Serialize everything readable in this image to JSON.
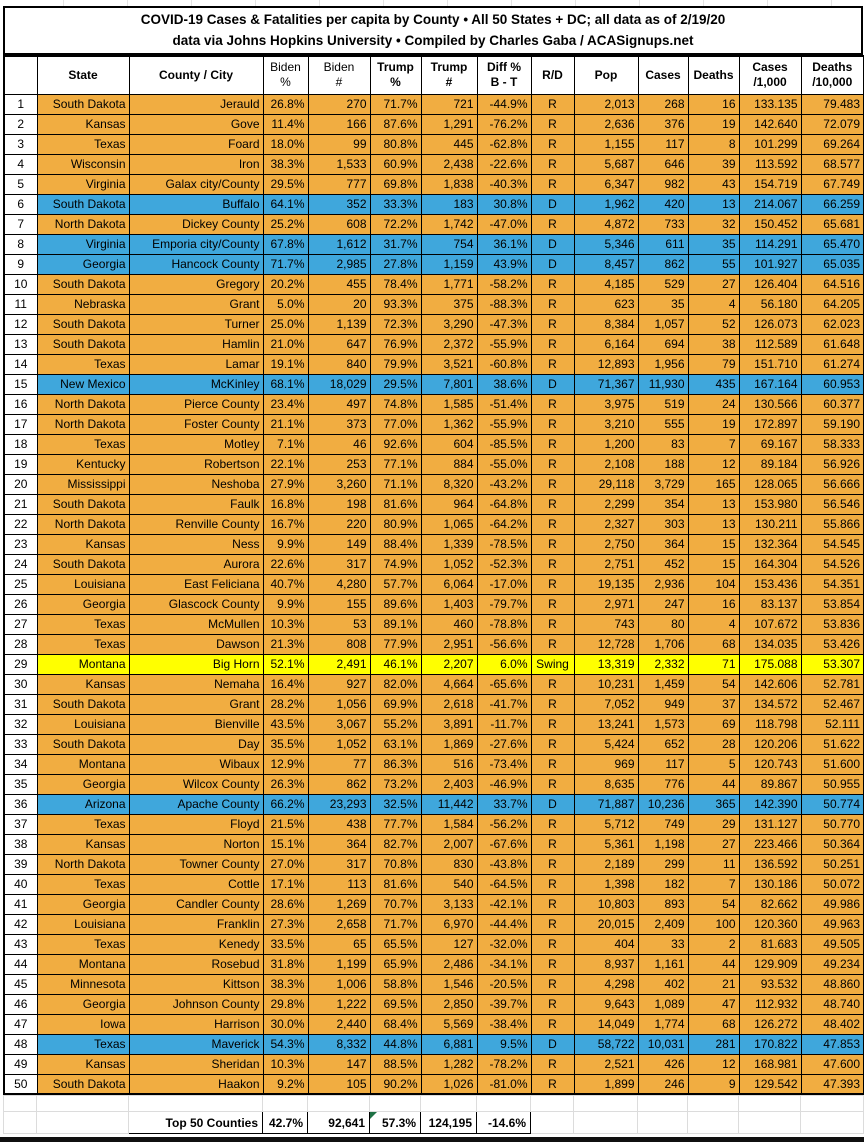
{
  "title": {
    "line1": "COVID-19 Cases & Fatalities per capita by County • All 50 States + DC; all data as of 2/19/20",
    "line2": "data via Johns Hopkins University • Compiled by Charles Gaba / ACASignups.net"
  },
  "columns": [
    "",
    "State",
    "County / City",
    "Biden\n%",
    "Biden\n#",
    "Trump\n%",
    "Trump\n#",
    "Diff %\nB - T",
    "R/D",
    "Pop",
    "Cases",
    "Deaths",
    "Cases\n/1,000",
    "Deaths\n/10,000"
  ],
  "rows": [
    [
      "1",
      "South Dakota",
      "Jerauld",
      "26.8%",
      "270",
      "71.7%",
      "721",
      "-44.9%",
      "R",
      "2,013",
      "268",
      "16",
      "133.135",
      "79.483"
    ],
    [
      "2",
      "Kansas",
      "Gove",
      "11.4%",
      "166",
      "87.6%",
      "1,291",
      "-76.2%",
      "R",
      "2,636",
      "376",
      "19",
      "142.640",
      "72.079"
    ],
    [
      "3",
      "Texas",
      "Foard",
      "18.0%",
      "99",
      "80.8%",
      "445",
      "-62.8%",
      "R",
      "1,155",
      "117",
      "8",
      "101.299",
      "69.264"
    ],
    [
      "4",
      "Wisconsin",
      "Iron",
      "38.3%",
      "1,533",
      "60.9%",
      "2,438",
      "-22.6%",
      "R",
      "5,687",
      "646",
      "39",
      "113.592",
      "68.577"
    ],
    [
      "5",
      "Virginia",
      "Galax city/County",
      "29.5%",
      "777",
      "69.8%",
      "1,838",
      "-40.3%",
      "R",
      "6,347",
      "982",
      "43",
      "154.719",
      "67.749"
    ],
    [
      "6",
      "South Dakota",
      "Buffalo",
      "64.1%",
      "352",
      "33.3%",
      "183",
      "30.8%",
      "D",
      "1,962",
      "420",
      "13",
      "214.067",
      "66.259"
    ],
    [
      "7",
      "North Dakota",
      "Dickey County",
      "25.2%",
      "608",
      "72.2%",
      "1,742",
      "-47.0%",
      "R",
      "4,872",
      "733",
      "32",
      "150.452",
      "65.681"
    ],
    [
      "8",
      "Virginia",
      "Emporia city/County",
      "67.8%",
      "1,612",
      "31.7%",
      "754",
      "36.1%",
      "D",
      "5,346",
      "611",
      "35",
      "114.291",
      "65.470"
    ],
    [
      "9",
      "Georgia",
      "Hancock County",
      "71.7%",
      "2,985",
      "27.8%",
      "1,159",
      "43.9%",
      "D",
      "8,457",
      "862",
      "55",
      "101.927",
      "65.035"
    ],
    [
      "10",
      "South Dakota",
      "Gregory",
      "20.2%",
      "455",
      "78.4%",
      "1,771",
      "-58.2%",
      "R",
      "4,185",
      "529",
      "27",
      "126.404",
      "64.516"
    ],
    [
      "11",
      "Nebraska",
      "Grant",
      "5.0%",
      "20",
      "93.3%",
      "375",
      "-88.3%",
      "R",
      "623",
      "35",
      "4",
      "56.180",
      "64.205"
    ],
    [
      "12",
      "South Dakota",
      "Turner",
      "25.0%",
      "1,139",
      "72.3%",
      "3,290",
      "-47.3%",
      "R",
      "8,384",
      "1,057",
      "52",
      "126.073",
      "62.023"
    ],
    [
      "13",
      "South Dakota",
      "Hamlin",
      "21.0%",
      "647",
      "76.9%",
      "2,372",
      "-55.9%",
      "R",
      "6,164",
      "694",
      "38",
      "112.589",
      "61.648"
    ],
    [
      "14",
      "Texas",
      "Lamar",
      "19.1%",
      "840",
      "79.9%",
      "3,521",
      "-60.8%",
      "R",
      "12,893",
      "1,956",
      "79",
      "151.710",
      "61.274"
    ],
    [
      "15",
      "New Mexico",
      "McKinley",
      "68.1%",
      "18,029",
      "29.5%",
      "7,801",
      "38.6%",
      "D",
      "71,367",
      "11,930",
      "435",
      "167.164",
      "60.953"
    ],
    [
      "16",
      "North Dakota",
      "Pierce County",
      "23.4%",
      "497",
      "74.8%",
      "1,585",
      "-51.4%",
      "R",
      "3,975",
      "519",
      "24",
      "130.566",
      "60.377"
    ],
    [
      "17",
      "North Dakota",
      "Foster County",
      "21.1%",
      "373",
      "77.0%",
      "1,362",
      "-55.9%",
      "R",
      "3,210",
      "555",
      "19",
      "172.897",
      "59.190"
    ],
    [
      "18",
      "Texas",
      "Motley",
      "7.1%",
      "46",
      "92.6%",
      "604",
      "-85.5%",
      "R",
      "1,200",
      "83",
      "7",
      "69.167",
      "58.333"
    ],
    [
      "19",
      "Kentucky",
      "Robertson",
      "22.1%",
      "253",
      "77.1%",
      "884",
      "-55.0%",
      "R",
      "2,108",
      "188",
      "12",
      "89.184",
      "56.926"
    ],
    [
      "20",
      "Mississippi",
      "Neshoba",
      "27.9%",
      "3,260",
      "71.1%",
      "8,320",
      "-43.2%",
      "R",
      "29,118",
      "3,729",
      "165",
      "128.065",
      "56.666"
    ],
    [
      "21",
      "South Dakota",
      "Faulk",
      "16.8%",
      "198",
      "81.6%",
      "964",
      "-64.8%",
      "R",
      "2,299",
      "354",
      "13",
      "153.980",
      "56.546"
    ],
    [
      "22",
      "North Dakota",
      "Renville County",
      "16.7%",
      "220",
      "80.9%",
      "1,065",
      "-64.2%",
      "R",
      "2,327",
      "303",
      "13",
      "130.211",
      "55.866"
    ],
    [
      "23",
      "Kansas",
      "Ness",
      "9.9%",
      "149",
      "88.4%",
      "1,339",
      "-78.5%",
      "R",
      "2,750",
      "364",
      "15",
      "132.364",
      "54.545"
    ],
    [
      "24",
      "South Dakota",
      "Aurora",
      "22.6%",
      "317",
      "74.9%",
      "1,052",
      "-52.3%",
      "R",
      "2,751",
      "452",
      "15",
      "164.304",
      "54.526"
    ],
    [
      "25",
      "Louisiana",
      "East Feliciana",
      "40.7%",
      "4,280",
      "57.7%",
      "6,064",
      "-17.0%",
      "R",
      "19,135",
      "2,936",
      "104",
      "153.436",
      "54.351"
    ],
    [
      "26",
      "Georgia",
      "Glascock County",
      "9.9%",
      "155",
      "89.6%",
      "1,403",
      "-79.7%",
      "R",
      "2,971",
      "247",
      "16",
      "83.137",
      "53.854"
    ],
    [
      "27",
      "Texas",
      "McMullen",
      "10.3%",
      "53",
      "89.1%",
      "460",
      "-78.8%",
      "R",
      "743",
      "80",
      "4",
      "107.672",
      "53.836"
    ],
    [
      "28",
      "Texas",
      "Dawson",
      "21.3%",
      "808",
      "77.9%",
      "2,951",
      "-56.6%",
      "R",
      "12,728",
      "1,706",
      "68",
      "134.035",
      "53.426"
    ],
    [
      "29",
      "Montana",
      "Big Horn",
      "52.1%",
      "2,491",
      "46.1%",
      "2,207",
      "6.0%",
      "Swing",
      "13,319",
      "2,332",
      "71",
      "175.088",
      "53.307"
    ],
    [
      "30",
      "Kansas",
      "Nemaha",
      "16.4%",
      "927",
      "82.0%",
      "4,664",
      "-65.6%",
      "R",
      "10,231",
      "1,459",
      "54",
      "142.606",
      "52.781"
    ],
    [
      "31",
      "South Dakota",
      "Grant",
      "28.2%",
      "1,056",
      "69.9%",
      "2,618",
      "-41.7%",
      "R",
      "7,052",
      "949",
      "37",
      "134.572",
      "52.467"
    ],
    [
      "32",
      "Louisiana",
      "Bienville",
      "43.5%",
      "3,067",
      "55.2%",
      "3,891",
      "-11.7%",
      "R",
      "13,241",
      "1,573",
      "69",
      "118.798",
      "52.111"
    ],
    [
      "33",
      "South Dakota",
      "Day",
      "35.5%",
      "1,052",
      "63.1%",
      "1,869",
      "-27.6%",
      "R",
      "5,424",
      "652",
      "28",
      "120.206",
      "51.622"
    ],
    [
      "34",
      "Montana",
      "Wibaux",
      "12.9%",
      "77",
      "86.3%",
      "516",
      "-73.4%",
      "R",
      "969",
      "117",
      "5",
      "120.743",
      "51.600"
    ],
    [
      "35",
      "Georgia",
      "Wilcox County",
      "26.3%",
      "862",
      "73.2%",
      "2,403",
      "-46.9%",
      "R",
      "8,635",
      "776",
      "44",
      "89.867",
      "50.955"
    ],
    [
      "36",
      "Arizona",
      "Apache County",
      "66.2%",
      "23,293",
      "32.5%",
      "11,442",
      "33.7%",
      "D",
      "71,887",
      "10,236",
      "365",
      "142.390",
      "50.774"
    ],
    [
      "37",
      "Texas",
      "Floyd",
      "21.5%",
      "438",
      "77.7%",
      "1,584",
      "-56.2%",
      "R",
      "5,712",
      "749",
      "29",
      "131.127",
      "50.770"
    ],
    [
      "38",
      "Kansas",
      "Norton",
      "15.1%",
      "364",
      "82.7%",
      "2,007",
      "-67.6%",
      "R",
      "5,361",
      "1,198",
      "27",
      "223.466",
      "50.364"
    ],
    [
      "39",
      "North Dakota",
      "Towner County",
      "27.0%",
      "317",
      "70.8%",
      "830",
      "-43.8%",
      "R",
      "2,189",
      "299",
      "11",
      "136.592",
      "50.251"
    ],
    [
      "40",
      "Texas",
      "Cottle",
      "17.1%",
      "113",
      "81.6%",
      "540",
      "-64.5%",
      "R",
      "1,398",
      "182",
      "7",
      "130.186",
      "50.072"
    ],
    [
      "41",
      "Georgia",
      "Candler County",
      "28.6%",
      "1,269",
      "70.7%",
      "3,133",
      "-42.1%",
      "R",
      "10,803",
      "893",
      "54",
      "82.662",
      "49.986"
    ],
    [
      "42",
      "Louisiana",
      "Franklin",
      "27.3%",
      "2,658",
      "71.7%",
      "6,970",
      "-44.4%",
      "R",
      "20,015",
      "2,409",
      "100",
      "120.360",
      "49.963"
    ],
    [
      "43",
      "Texas",
      "Kenedy",
      "33.5%",
      "65",
      "65.5%",
      "127",
      "-32.0%",
      "R",
      "404",
      "33",
      "2",
      "81.683",
      "49.505"
    ],
    [
      "44",
      "Montana",
      "Rosebud",
      "31.8%",
      "1,199",
      "65.9%",
      "2,486",
      "-34.1%",
      "R",
      "8,937",
      "1,161",
      "44",
      "129.909",
      "49.234"
    ],
    [
      "45",
      "Minnesota",
      "Kittson",
      "38.3%",
      "1,006",
      "58.8%",
      "1,546",
      "-20.5%",
      "R",
      "4,298",
      "402",
      "21",
      "93.532",
      "48.860"
    ],
    [
      "46",
      "Georgia",
      "Johnson County",
      "29.8%",
      "1,222",
      "69.5%",
      "2,850",
      "-39.7%",
      "R",
      "9,643",
      "1,089",
      "47",
      "112.932",
      "48.740"
    ],
    [
      "47",
      "Iowa",
      "Harrison",
      "30.0%",
      "2,440",
      "68.4%",
      "5,569",
      "-38.4%",
      "R",
      "14,049",
      "1,774",
      "68",
      "126.272",
      "48.402"
    ],
    [
      "48",
      "Texas",
      "Maverick",
      "54.3%",
      "8,332",
      "44.8%",
      "6,881",
      "9.5%",
      "D",
      "58,722",
      "10,031",
      "281",
      "170.822",
      "47.853"
    ],
    [
      "49",
      "Kansas",
      "Sheridan",
      "10.3%",
      "147",
      "88.5%",
      "1,282",
      "-78.2%",
      "R",
      "2,521",
      "426",
      "12",
      "168.981",
      "47.600"
    ],
    [
      "50",
      "South Dakota",
      "Haakon",
      "9.2%",
      "105",
      "90.2%",
      "1,026",
      "-81.0%",
      "R",
      "1,899",
      "246",
      "9",
      "129.542",
      "47.393"
    ]
  ],
  "footer": {
    "label": "Top 50 Counties",
    "biden_pct": "42.7%",
    "biden_n": "92,641",
    "trump_pct": "57.3%",
    "trump_n": "124,195",
    "diff": "-14.6%"
  },
  "colors": {
    "republican_row": "#F1AD41",
    "democrat_row": "#3FA7DC",
    "swing_row": "#FFFF00",
    "cell_border": "#000000",
    "gridline": "#DCDCDC",
    "error_flag_green": "#1E7145"
  }
}
